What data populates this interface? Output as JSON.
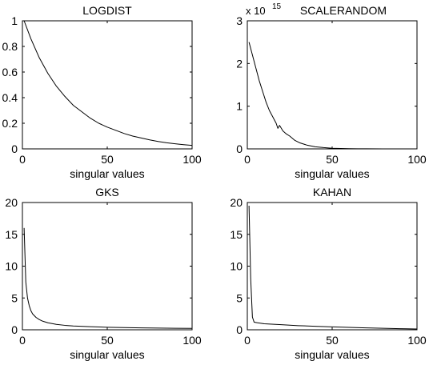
{
  "chart_data": [
    {
      "type": "line",
      "title": "LOGDIST",
      "xlabel": "singular values",
      "ylabel": "",
      "xlim": [
        0,
        100
      ],
      "ylim": [
        0,
        1
      ],
      "xticks": [
        0,
        50,
        100
      ],
      "yticks": [
        0,
        0.2,
        0.4,
        0.6,
        0.8,
        1
      ],
      "yticklabels": [
        "0",
        "0.2",
        "0.4",
        "0.6",
        "0.8",
        "1"
      ],
      "exponent_label": "",
      "grid": false,
      "series": [
        {
          "x": [
            1,
            5,
            10,
            15,
            20,
            25,
            30,
            35,
            40,
            45,
            50,
            55,
            60,
            65,
            70,
            75,
            80,
            85,
            90,
            95,
            100
          ],
          "y": [
            1.0,
            0.86,
            0.71,
            0.59,
            0.49,
            0.41,
            0.34,
            0.29,
            0.24,
            0.2,
            0.17,
            0.145,
            0.12,
            0.1,
            0.085,
            0.07,
            0.058,
            0.048,
            0.04,
            0.033,
            0.027
          ]
        }
      ]
    },
    {
      "type": "line",
      "title": "SCALERANDOM",
      "xlabel": "singular values",
      "ylabel": "",
      "xlim": [
        0,
        100
      ],
      "ylim": [
        0,
        3
      ],
      "xticks": [
        0,
        50,
        100
      ],
      "yticks": [
        0,
        1,
        2,
        3
      ],
      "yticklabels": [
        "0",
        "1",
        "2",
        "3"
      ],
      "exponent_label": "x 10",
      "exponent_power": "15",
      "grid": false,
      "series": [
        {
          "x": [
            1,
            3,
            5,
            7,
            9,
            11,
            13,
            15,
            17,
            18,
            19,
            21,
            23,
            25,
            28,
            31,
            35,
            40,
            45,
            50,
            55,
            60,
            65,
            70,
            80,
            90,
            100
          ],
          "y": [
            2.5,
            2.2,
            1.9,
            1.6,
            1.35,
            1.1,
            0.9,
            0.75,
            0.6,
            0.48,
            0.55,
            0.42,
            0.35,
            0.3,
            0.2,
            0.14,
            0.09,
            0.05,
            0.03,
            0.015,
            0.01,
            0.005,
            0.003,
            0.002,
            0.001,
            0.0005,
            0.0002
          ]
        }
      ]
    },
    {
      "type": "line",
      "title": "GKS",
      "xlabel": "singular values",
      "ylabel": "",
      "xlim": [
        0,
        100
      ],
      "ylim": [
        0,
        20
      ],
      "xticks": [
        0,
        50,
        100
      ],
      "yticks": [
        0,
        5,
        10,
        15,
        20
      ],
      "yticklabels": [
        "0",
        "5",
        "10",
        "15",
        "20"
      ],
      "exponent_label": "",
      "grid": false,
      "series": [
        {
          "x": [
            1,
            2,
            3,
            4,
            5,
            6,
            8,
            10,
            12,
            15,
            20,
            25,
            30,
            40,
            50,
            60,
            70,
            80,
            90,
            100
          ],
          "y": [
            16.0,
            7.5,
            5.0,
            3.8,
            3.0,
            2.5,
            1.95,
            1.6,
            1.35,
            1.1,
            0.85,
            0.7,
            0.6,
            0.48,
            0.4,
            0.34,
            0.3,
            0.27,
            0.24,
            0.22
          ]
        }
      ]
    },
    {
      "type": "line",
      "title": "KAHAN",
      "xlabel": "singular values",
      "ylabel": "",
      "xlim": [
        0,
        100
      ],
      "ylim": [
        0,
        20
      ],
      "xticks": [
        0,
        50,
        100
      ],
      "yticks": [
        0,
        5,
        10,
        15,
        20
      ],
      "yticklabels": [
        "0",
        "5",
        "10",
        "15",
        "20"
      ],
      "exponent_label": "",
      "grid": false,
      "series": [
        {
          "x": [
            1,
            2,
            3,
            4,
            6,
            10,
            20,
            30,
            40,
            50,
            60,
            70,
            80,
            90,
            100
          ],
          "y": [
            19.5,
            8.0,
            2.0,
            1.2,
            1.1,
            0.95,
            0.8,
            0.65,
            0.55,
            0.45,
            0.38,
            0.3,
            0.24,
            0.18,
            0.12
          ]
        }
      ]
    }
  ]
}
